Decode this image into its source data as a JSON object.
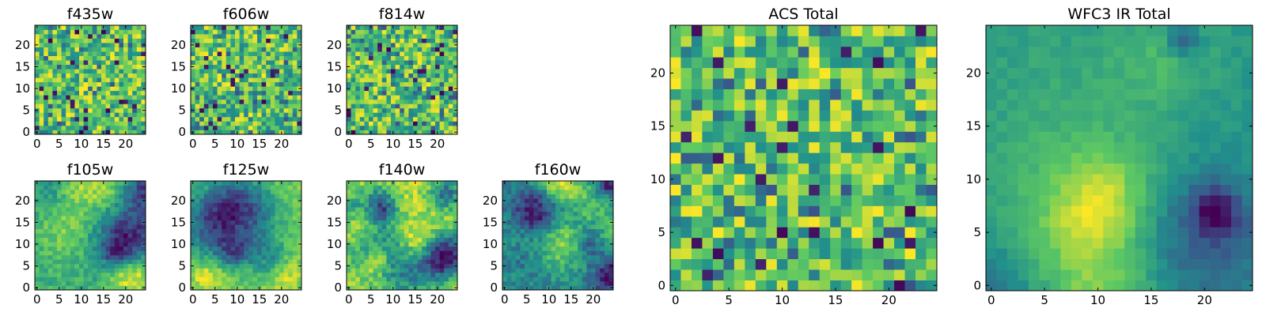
{
  "colormap": {
    "name": "viridis",
    "stops": [
      "#440154",
      "#3b528b",
      "#21918c",
      "#5ec962",
      "#fde725"
    ]
  },
  "chart_data": [
    {
      "type": "heatmap",
      "title": "f435w",
      "grid_size": [
        25,
        25
      ],
      "xticks": [
        0,
        5,
        10,
        15,
        20
      ],
      "yticks": [
        0,
        5,
        10,
        15,
        20
      ],
      "xlim": [
        0,
        24
      ],
      "ylim": [
        0,
        24
      ],
      "values_style": "noise-bright",
      "seed": 11
    },
    {
      "type": "heatmap",
      "title": "f606w",
      "grid_size": [
        25,
        25
      ],
      "xticks": [
        0,
        5,
        10,
        15,
        20
      ],
      "yticks": [
        0,
        5,
        10,
        15,
        20
      ],
      "xlim": [
        0,
        24
      ],
      "ylim": [
        0,
        24
      ],
      "values_style": "noise-bright",
      "seed": 23
    },
    {
      "type": "heatmap",
      "title": "f814w",
      "grid_size": [
        25,
        25
      ],
      "xticks": [
        0,
        5,
        10,
        15,
        20
      ],
      "yticks": [
        0,
        5,
        10,
        15,
        20
      ],
      "xlim": [
        0,
        24
      ],
      "ylim": [
        0,
        24
      ],
      "values_style": "noise-bright",
      "seed": 37
    },
    {
      "type": "heatmap",
      "title": "f105w",
      "grid_size": [
        25,
        25
      ],
      "xticks": [
        0,
        5,
        10,
        15,
        20
      ],
      "yticks": [
        0,
        5,
        10,
        15,
        20
      ],
      "xlim": [
        0,
        24
      ],
      "ylim": [
        0,
        24
      ],
      "values_style": "smooth",
      "seed": 41
    },
    {
      "type": "heatmap",
      "title": "f125w",
      "grid_size": [
        25,
        25
      ],
      "xticks": [
        0,
        5,
        10,
        15,
        20
      ],
      "yticks": [
        0,
        5,
        10,
        15,
        20
      ],
      "xlim": [
        0,
        24
      ],
      "ylim": [
        0,
        24
      ],
      "values_style": "smooth",
      "seed": 53
    },
    {
      "type": "heatmap",
      "title": "f140w",
      "grid_size": [
        25,
        25
      ],
      "xticks": [
        0,
        5,
        10,
        15,
        20
      ],
      "yticks": [
        0,
        5,
        10,
        15,
        20
      ],
      "xlim": [
        0,
        24
      ],
      "ylim": [
        0,
        24
      ],
      "values_style": "smooth",
      "seed": 67
    },
    {
      "type": "heatmap",
      "title": "f160w",
      "grid_size": [
        25,
        25
      ],
      "xticks": [
        0,
        5,
        10,
        15,
        20
      ],
      "yticks": [
        0,
        5,
        10,
        15,
        20
      ],
      "xlim": [
        0,
        24
      ],
      "ylim": [
        0,
        24
      ],
      "values_style": "smooth",
      "seed": 71
    },
    {
      "type": "heatmap",
      "title": "ACS Total",
      "grid_size": [
        25,
        25
      ],
      "xticks": [
        0,
        5,
        10,
        15,
        20
      ],
      "yticks": [
        0,
        5,
        10,
        15,
        20
      ],
      "xlim": [
        0,
        24
      ],
      "ylim": [
        0,
        24
      ],
      "values_style": "noise-bright",
      "seed": 83
    },
    {
      "type": "heatmap",
      "title": "WFC3 IR Total",
      "grid_size": [
        25,
        25
      ],
      "xticks": [
        0,
        5,
        10,
        15,
        20
      ],
      "yticks": [
        0,
        5,
        10,
        15,
        20
      ],
      "xlim": [
        0,
        24
      ],
      "ylim": [
        0,
        24
      ],
      "values_style": "smooth-blob",
      "seed": 97
    }
  ]
}
